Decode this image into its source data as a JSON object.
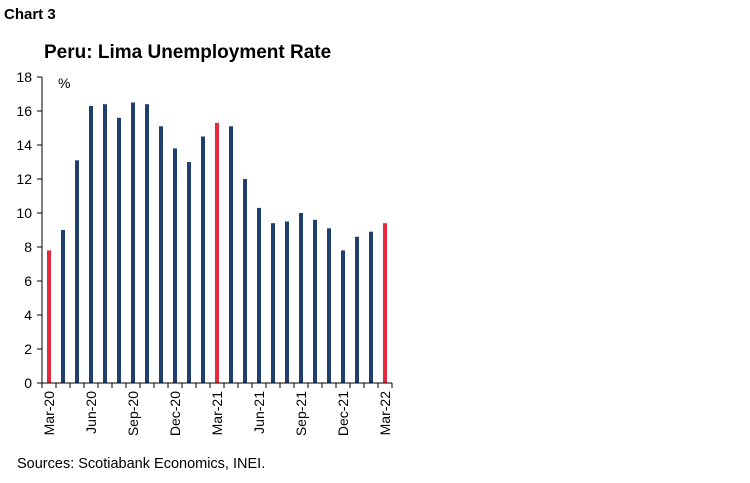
{
  "header": {
    "chart_label": "Chart 3"
  },
  "footer": {
    "source": "Sources: Scotiabank Economics, INEI."
  },
  "chart_data": {
    "type": "bar",
    "title": "Peru: Lima Unemployment Rate",
    "ylabel": "%",
    "xlabel": "",
    "ylim": [
      0,
      18
    ],
    "yticks": [
      0,
      2,
      4,
      6,
      8,
      10,
      12,
      14,
      16,
      18
    ],
    "grid": false,
    "legend": "none",
    "categories": [
      "Mar-20",
      "Apr-20",
      "May-20",
      "Jun-20",
      "Jul-20",
      "Aug-20",
      "Sep-20",
      "Oct-20",
      "Nov-20",
      "Dec-20",
      "Jan-21",
      "Feb-21",
      "Mar-21",
      "Apr-21",
      "May-21",
      "Jun-21",
      "Jul-21",
      "Aug-21",
      "Sep-21",
      "Oct-21",
      "Nov-21",
      "Dec-21",
      "Jan-22",
      "Feb-22",
      "Mar-22"
    ],
    "tick_labels": [
      "Mar-20",
      "Jun-20",
      "Sep-20",
      "Dec-20",
      "Mar-21",
      "Jun-21",
      "Sep-21",
      "Dec-21",
      "Mar-22"
    ],
    "values": [
      7.8,
      9.0,
      13.1,
      16.3,
      16.4,
      15.6,
      16.5,
      16.4,
      15.1,
      13.8,
      13.0,
      14.5,
      15.3,
      15.1,
      12.0,
      10.3,
      9.4,
      9.5,
      10.0,
      9.6,
      9.1,
      7.8,
      8.6,
      8.9,
      9.4
    ],
    "highlighted": [
      "Mar-20",
      "Mar-21",
      "Mar-22"
    ],
    "colors": {
      "bar": "#1f3f6e",
      "highlight": "#e8283c",
      "axis": "#000000"
    }
  }
}
